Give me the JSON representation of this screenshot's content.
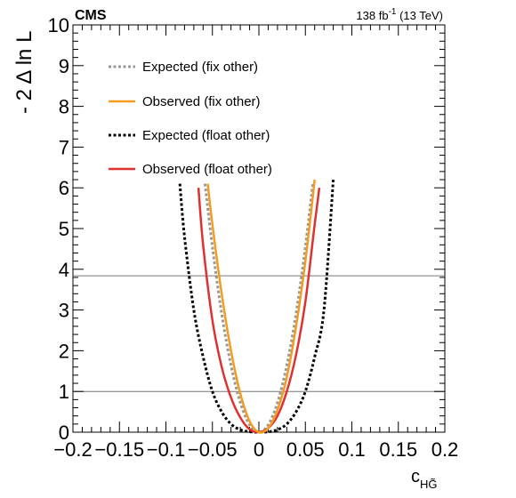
{
  "header": {
    "experiment": "CMS",
    "lumi_value": "138 fb",
    "lumi_exp": "-1",
    "lumi_energy": " (13 TeV)"
  },
  "chart_data": {
    "type": "line",
    "xlabel": "c",
    "xlabel_sub": "HG̃",
    "ylabel": "- 2 Δ ln L",
    "xlim": [
      -0.2,
      0.2
    ],
    "ylim": [
      0,
      10
    ],
    "x_ticks": [
      -0.2,
      -0.15,
      -0.1,
      -0.05,
      0,
      0.05,
      0.1,
      0.15,
      0.2
    ],
    "x_tick_labels": [
      "−0.2",
      "−0.15",
      "−0.1",
      "−0.05",
      "0",
      "0.05",
      "0.1",
      "0.15",
      "0.2"
    ],
    "y_ticks": [
      0,
      1,
      2,
      3,
      4,
      5,
      6,
      7,
      8,
      9,
      10
    ],
    "y_tick_labels": [
      "0",
      "1",
      "2",
      "3",
      "4",
      "5",
      "6",
      "7",
      "8",
      "9",
      "10"
    ],
    "reference_lines": [
      1.0,
      3.84
    ],
    "legend_position": "top-left",
    "series": [
      {
        "name": "Expected (fix other)",
        "color": "#999999",
        "style": "dotted",
        "x": [
          -0.058,
          -0.05,
          -0.04,
          -0.03,
          -0.02,
          -0.01,
          0.0,
          0.01,
          0.02,
          0.03,
          0.04,
          0.05,
          0.058
        ],
        "y": [
          6.1,
          4.55,
          2.91,
          1.64,
          0.73,
          0.18,
          0.0,
          0.18,
          0.73,
          1.64,
          2.91,
          4.55,
          6.1
        ]
      },
      {
        "name": "Observed (fix other)",
        "color": "#f39c1f",
        "style": "solid",
        "x": [
          -0.055,
          -0.05,
          -0.04,
          -0.03,
          -0.02,
          -0.01,
          0.0,
          0.01,
          0.02,
          0.03,
          0.04,
          0.05,
          0.06
        ],
        "y": [
          6.1,
          5.1,
          3.4,
          2.0,
          0.95,
          0.27,
          0.0,
          0.1,
          0.55,
          1.35,
          2.6,
          4.2,
          6.2
        ]
      },
      {
        "name": "Expected (float other)",
        "color": "#000000",
        "style": "dotted",
        "x": [
          -0.085,
          -0.08,
          -0.07,
          -0.06,
          -0.05,
          -0.04,
          -0.03,
          -0.02,
          -0.01,
          0.0,
          0.01,
          0.02,
          0.03,
          0.04,
          0.05,
          0.06,
          0.07,
          0.08
        ],
        "y": [
          6.1,
          4.8,
          3.0,
          1.85,
          1.0,
          0.5,
          0.2,
          0.06,
          0.01,
          0.0,
          0.01,
          0.06,
          0.2,
          0.5,
          1.0,
          1.85,
          3.0,
          6.2
        ]
      },
      {
        "name": "Observed (float other)",
        "color": "#e03030",
        "style": "solid",
        "x": [
          -0.065,
          -0.06,
          -0.05,
          -0.04,
          -0.03,
          -0.02,
          -0.01,
          0.0,
          0.01,
          0.02,
          0.03,
          0.04,
          0.05,
          0.06,
          0.065
        ],
        "y": [
          6.0,
          4.6,
          2.75,
          1.6,
          0.85,
          0.36,
          0.07,
          0.0,
          0.1,
          0.4,
          1.0,
          1.9,
          3.2,
          5.1,
          6.0
        ]
      }
    ]
  }
}
